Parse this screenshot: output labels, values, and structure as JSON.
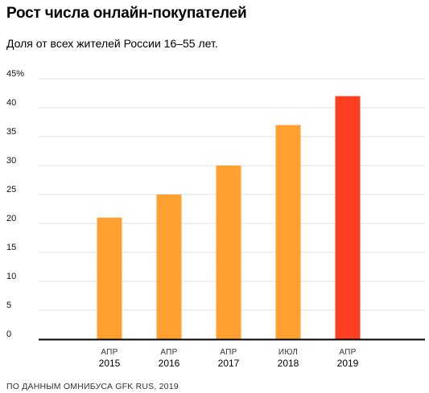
{
  "chart_data": {
    "type": "bar",
    "title": "Рост числа онлайн-покупателей",
    "subtitle": "Доля от всех жителей России 16–55 лет.",
    "categories": [
      {
        "month": "АПР",
        "year": "2015"
      },
      {
        "month": "АПР",
        "year": "2016"
      },
      {
        "month": "АПР",
        "year": "2017"
      },
      {
        "month": "ИЮЛ",
        "year": "2018"
      },
      {
        "month": "АПР",
        "year": "2019"
      }
    ],
    "values": [
      21,
      25,
      30,
      37,
      42
    ],
    "colors": [
      "#ffa030",
      "#ffa030",
      "#ffa030",
      "#ffa030",
      "#ff3f1f"
    ],
    "ylim": [
      0,
      45
    ],
    "yticks": [
      {
        "value": 0,
        "label": "0"
      },
      {
        "value": 5,
        "label": "5"
      },
      {
        "value": 10,
        "label": "10"
      },
      {
        "value": 15,
        "label": "15"
      },
      {
        "value": 20,
        "label": "20"
      },
      {
        "value": 25,
        "label": "25"
      },
      {
        "value": 30,
        "label": "30"
      },
      {
        "value": 35,
        "label": "35"
      },
      {
        "value": 40,
        "label": "40"
      },
      {
        "value": 45,
        "label": "45%"
      }
    ],
    "grid": true,
    "source": "ПО ДАННЫМ ОМНИБУСА GFK RUS, 2019"
  }
}
